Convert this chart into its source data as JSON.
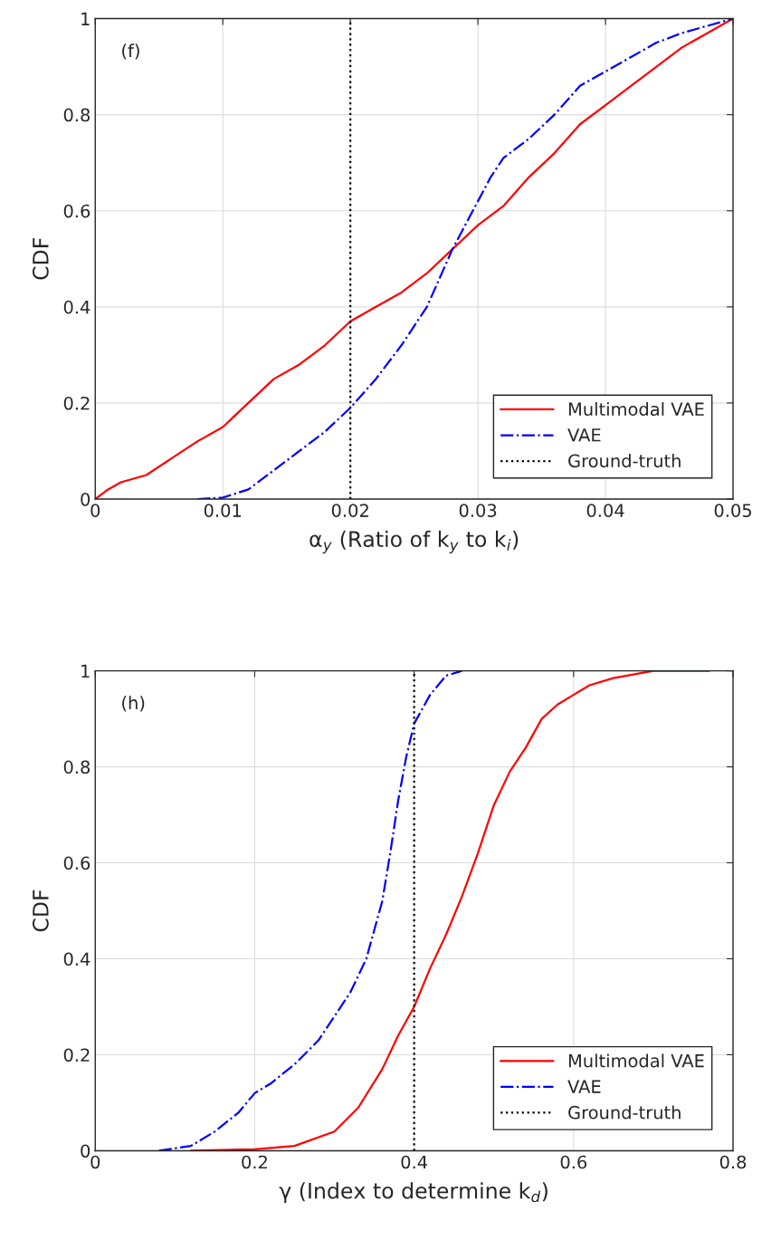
{
  "chart_data": [
    {
      "type": "line",
      "xlabel": "α$_{y}$ (Ratio of k$_{y}$ to k$_{i}$)",
      "ylabel": "CDF",
      "xlim": [
        0,
        0.05
      ],
      "ylim": [
        0,
        1
      ],
      "xticks": [
        0,
        0.01,
        0.02,
        0.03,
        0.04,
        0.05
      ],
      "yticks": [
        0,
        0.2,
        0.4,
        0.6,
        0.8,
        1
      ],
      "grid": true,
      "legend": "bottom right",
      "annotations": [
        "(f)"
      ],
      "series": [
        {
          "name": "Multimodal VAE",
          "color": "#ff0000",
          "line_style": "solid",
          "x": [
            0,
            0.001,
            0.002,
            0.004,
            0.006,
            0.008,
            0.01,
            0.012,
            0.014,
            0.016,
            0.018,
            0.02,
            0.022,
            0.024,
            0.026,
            0.028,
            0.03,
            0.032,
            0.034,
            0.036,
            0.038,
            0.04,
            0.042,
            0.044,
            0.046,
            0.048,
            0.05
          ],
          "values": [
            0,
            0.02,
            0.035,
            0.05,
            0.085,
            0.12,
            0.15,
            0.2,
            0.25,
            0.28,
            0.32,
            0.37,
            0.4,
            0.43,
            0.47,
            0.52,
            0.57,
            0.61,
            0.67,
            0.72,
            0.78,
            0.82,
            0.86,
            0.9,
            0.94,
            0.97,
            1
          ]
        },
        {
          "name": "VAE",
          "color": "#0000ff",
          "line_style": "dashdot",
          "x": [
            0.008,
            0.01,
            0.012,
            0.014,
            0.016,
            0.018,
            0.02,
            0.022,
            0.024,
            0.026,
            0.027,
            0.028,
            0.029,
            0.03,
            0.031,
            0.032,
            0.034,
            0.036,
            0.038,
            0.04,
            0.042,
            0.044,
            0.046,
            0.048,
            0.05
          ],
          "values": [
            0,
            0.003,
            0.02,
            0.06,
            0.1,
            0.14,
            0.19,
            0.25,
            0.32,
            0.4,
            0.46,
            0.52,
            0.57,
            0.62,
            0.67,
            0.71,
            0.75,
            0.8,
            0.86,
            0.89,
            0.92,
            0.95,
            0.97,
            0.985,
            1
          ]
        },
        {
          "name": "Ground-truth",
          "color": "#000000",
          "line_style": "dotted",
          "x": [
            0.02,
            0.02
          ],
          "values": [
            0,
            1
          ]
        }
      ]
    },
    {
      "type": "line",
      "xlabel": "γ (Index to determine k$_{d}$)",
      "ylabel": "CDF",
      "xlim": [
        0,
        0.8
      ],
      "ylim": [
        0,
        1
      ],
      "xticks": [
        0,
        0.2,
        0.4,
        0.6,
        0.8
      ],
      "yticks": [
        0,
        0.2,
        0.4,
        0.6,
        0.8,
        1
      ],
      "grid": true,
      "legend": "bottom right",
      "annotations": [
        "(h)"
      ],
      "series": [
        {
          "name": "Multimodal VAE",
          "color": "#ff0000",
          "line_style": "solid",
          "x": [
            0.12,
            0.2,
            0.25,
            0.3,
            0.33,
            0.36,
            0.38,
            0.4,
            0.42,
            0.44,
            0.46,
            0.48,
            0.5,
            0.52,
            0.54,
            0.56,
            0.58,
            0.6,
            0.62,
            0.65,
            0.7,
            0.77
          ],
          "values": [
            0,
            0.003,
            0.01,
            0.04,
            0.09,
            0.17,
            0.24,
            0.3,
            0.38,
            0.45,
            0.53,
            0.62,
            0.72,
            0.79,
            0.84,
            0.9,
            0.93,
            0.95,
            0.97,
            0.985,
            1,
            1
          ]
        },
        {
          "name": "VAE",
          "color": "#0000ff",
          "line_style": "dashdot",
          "x": [
            0.08,
            0.12,
            0.15,
            0.18,
            0.2,
            0.22,
            0.25,
            0.28,
            0.3,
            0.32,
            0.34,
            0.36,
            0.37,
            0.38,
            0.39,
            0.4,
            0.42,
            0.44,
            0.46
          ],
          "values": [
            0,
            0.01,
            0.04,
            0.08,
            0.12,
            0.14,
            0.18,
            0.23,
            0.28,
            0.33,
            0.4,
            0.52,
            0.62,
            0.73,
            0.82,
            0.89,
            0.95,
            0.99,
            1
          ]
        },
        {
          "name": "Ground-truth",
          "color": "#000000",
          "line_style": "dotted",
          "x": [
            0.4,
            0.4
          ],
          "values": [
            0,
            1
          ]
        }
      ]
    }
  ]
}
